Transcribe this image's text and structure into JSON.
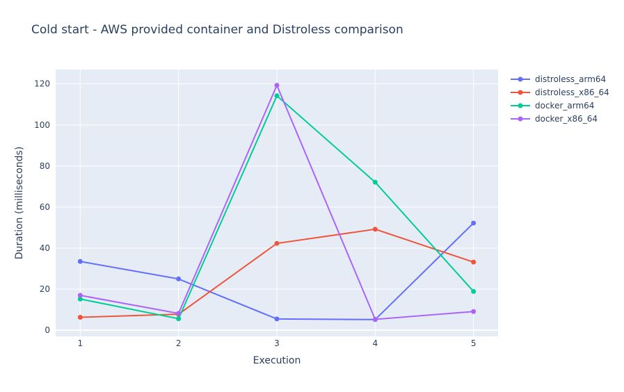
{
  "chart_data": {
    "type": "line",
    "title": "Cold start - AWS provided container and Distroless comparison",
    "xlabel": "Execution",
    "ylabel": "Duration (milliseconds)",
    "x": [
      1,
      2,
      3,
      4,
      5
    ],
    "xticks": [
      "1",
      "2",
      "3",
      "4",
      "5"
    ],
    "xlim": [
      0.75,
      5.25
    ],
    "ylim": [
      -3,
      127
    ],
    "yticks": [
      0,
      20,
      40,
      60,
      80,
      100,
      120
    ],
    "grid": true,
    "legend_position": "top-right",
    "series": [
      {
        "name": "distroless_arm64",
        "color": "#636efa",
        "values": [
          33.5,
          25,
          5.5,
          5.2,
          52.2
        ]
      },
      {
        "name": "distroless_x86_64",
        "color": "#ef553b",
        "values": [
          6.3,
          7.8,
          42.3,
          49.2,
          33.2
        ]
      },
      {
        "name": "docker_arm64",
        "color": "#00cc96",
        "values": [
          15.2,
          5.6,
          114.2,
          72.1,
          18.9
        ]
      },
      {
        "name": "docker_x86_64",
        "color": "#ab63fa",
        "values": [
          17,
          8.2,
          119.3,
          5.3,
          9.1
        ]
      }
    ]
  }
}
